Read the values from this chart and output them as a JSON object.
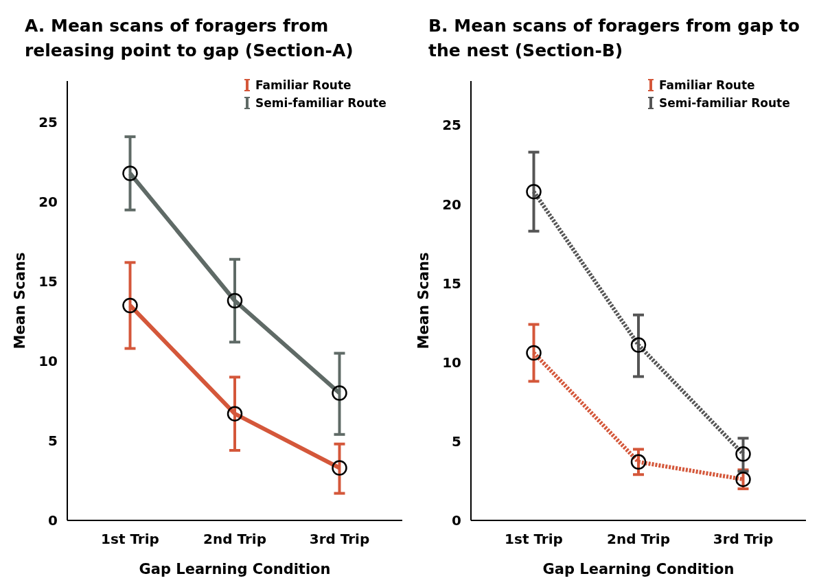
{
  "chart_data": [
    {
      "type": "line",
      "title": "A. Mean scans of foragers from releasing point to gap (Section-A)",
      "xlabel": "Gap Learning Condition",
      "ylabel": "Mean Scans",
      "categories": [
        "1st Trip",
        "2nd Trip",
        "3rd Trip"
      ],
      "ylim": [
        0,
        27.6
      ],
      "yticks": [
        0,
        5,
        10,
        15,
        20,
        25
      ],
      "marker": "circle",
      "line_style": "solid",
      "legend": "top right",
      "grid": false,
      "series": [
        {
          "name": "Familiar Route",
          "color": "#d4573a",
          "values": [
            13.5,
            6.7,
            3.3
          ],
          "errors": [
            [
              10.8,
              16.2
            ],
            [
              4.4,
              9.0
            ],
            [
              1.7,
              4.8
            ]
          ]
        },
        {
          "name": "Semi-familiar Route",
          "color": "#5f6a66",
          "values": [
            21.8,
            13.8,
            8.0
          ],
          "errors": [
            [
              19.5,
              24.1
            ],
            [
              11.2,
              16.4
            ],
            [
              5.4,
              10.5
            ]
          ]
        }
      ]
    },
    {
      "type": "line",
      "title": "B. Mean scans of foragers from gap to the nest (Section-B)",
      "xlabel": "Gap Learning Condition",
      "ylabel": "Mean Scans",
      "categories": [
        "1st Trip",
        "2nd Trip",
        "3rd Trip"
      ],
      "ylim": [
        0,
        27.8
      ],
      "yticks": [
        0,
        5,
        10,
        15,
        20,
        25
      ],
      "marker": "circle",
      "line_style": "dotted",
      "legend": "top right",
      "grid": false,
      "series": [
        {
          "name": "Familiar Route",
          "color": "#d4573a",
          "values": [
            10.6,
            3.7,
            2.6
          ],
          "errors": [
            [
              8.8,
              12.4
            ],
            [
              2.9,
              4.5
            ],
            [
              2.0,
              3.2
            ]
          ]
        },
        {
          "name": "Semi-familiar Route",
          "color": "#555555",
          "values": [
            20.8,
            11.1,
            4.2
          ],
          "errors": [
            [
              18.3,
              23.3
            ],
            [
              9.1,
              13.0
            ],
            [
              3.1,
              5.2
            ]
          ]
        }
      ]
    }
  ]
}
